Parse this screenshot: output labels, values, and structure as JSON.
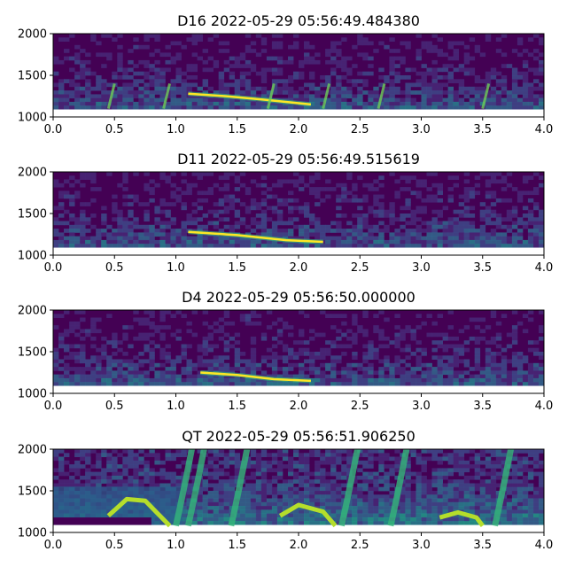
{
  "chart_data": [
    {
      "type": "heatmap",
      "title": "D16 2022-05-29 05:56:49.484380",
      "xlabel": "",
      "ylabel": "",
      "xlim": [
        0.0,
        4.0
      ],
      "ylim": [
        1000,
        2000
      ],
      "xticks": [
        "0.0",
        "0.5",
        "1.0",
        "1.5",
        "2.0",
        "2.5",
        "3.0",
        "3.5",
        "4.0"
      ],
      "yticks": [
        "1000",
        "1500",
        "2000"
      ],
      "colormap": "viridis",
      "ridge": {
        "x": [
          1.1,
          1.4,
          1.7,
          2.1
        ],
        "y": [
          1280,
          1250,
          1210,
          1150
        ]
      },
      "transients_x": [
        0.45,
        0.9,
        1.75,
        2.2,
        2.65,
        3.5
      ]
    },
    {
      "type": "heatmap",
      "title": "D11 2022-05-29 05:56:49.515619",
      "xlabel": "",
      "ylabel": "",
      "xlim": [
        0.0,
        4.0
      ],
      "ylim": [
        1000,
        2000
      ],
      "xticks": [
        "0.0",
        "0.5",
        "1.0",
        "1.5",
        "2.0",
        "2.5",
        "3.0",
        "3.5",
        "4.0"
      ],
      "yticks": [
        "1000",
        "1500",
        "2000"
      ],
      "colormap": "viridis",
      "ridge": {
        "x": [
          1.1,
          1.5,
          1.9,
          2.2
        ],
        "y": [
          1280,
          1240,
          1180,
          1160
        ]
      },
      "transients_x": []
    },
    {
      "type": "heatmap",
      "title": "D4 2022-05-29 05:56:50.000000",
      "xlabel": "",
      "ylabel": "",
      "xlim": [
        0.0,
        4.0
      ],
      "ylim": [
        1000,
        2000
      ],
      "xticks": [
        "0.0",
        "0.5",
        "1.0",
        "1.5",
        "2.0",
        "2.5",
        "3.0",
        "3.5",
        "4.0"
      ],
      "yticks": [
        "1000",
        "1500",
        "2000"
      ],
      "colormap": "viridis",
      "ridge": {
        "x": [
          1.2,
          1.5,
          1.8,
          2.1
        ],
        "y": [
          1250,
          1220,
          1170,
          1150
        ]
      },
      "transients_x": []
    },
    {
      "type": "heatmap",
      "title": "QT 2022-05-29 05:56:51.906250",
      "xlabel": "",
      "ylabel": "",
      "xlim": [
        0.0,
        4.0
      ],
      "ylim": [
        1000,
        2000
      ],
      "xticks": [
        "0.0",
        "0.5",
        "1.0",
        "1.5",
        "2.0",
        "2.5",
        "3.0",
        "3.5",
        "4.0"
      ],
      "yticks": [
        "1000",
        "1500",
        "2000"
      ],
      "colormap": "viridis",
      "arches": [
        {
          "x": [
            0.45,
            0.6,
            0.75,
            0.95
          ],
          "y": [
            1200,
            1400,
            1380,
            1080
          ]
        },
        {
          "x": [
            1.85,
            2.0,
            2.2,
            2.3
          ],
          "y": [
            1200,
            1330,
            1250,
            1080
          ]
        },
        {
          "x": [
            3.15,
            3.3,
            3.45,
            3.5
          ],
          "y": [
            1180,
            1240,
            1180,
            1080
          ]
        }
      ],
      "vertical_tracks_x": [
        1.05,
        1.15,
        1.5,
        2.4,
        2.8,
        3.65
      ],
      "masked_region": {
        "x": [
          0.0,
          1.05
        ],
        "y": [
          1000,
          1550
        ]
      }
    }
  ]
}
